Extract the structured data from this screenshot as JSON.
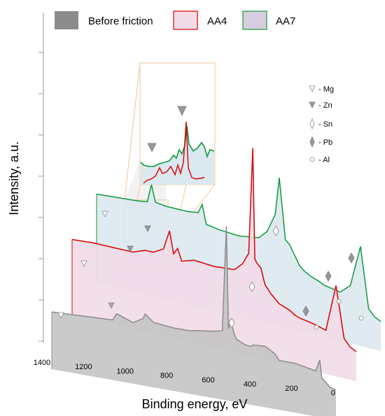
{
  "chart_data": {
    "type": "line",
    "title": "",
    "xlabel": "Binding energy, eV",
    "ylabel": "Intensity, a.u.",
    "x_ticks": [
      "1400",
      "1200",
      "1000",
      "800",
      "600",
      "400",
      "200",
      "0"
    ],
    "xlim": [
      1400,
      0
    ],
    "grid": false,
    "legend_position": "top",
    "series": [
      {
        "name": "Before friction",
        "color": "#8c8c8c",
        "fill": "#c4c4c4",
        "x": [
          1400,
          1300,
          1200,
          1100,
          1080,
          1000,
          950,
          940,
          900,
          800,
          720,
          700,
          600,
          560,
          540,
          530,
          520,
          500,
          490,
          480,
          450,
          420,
          410,
          350,
          300,
          280,
          200,
          150,
          100,
          80,
          70,
          50,
          30,
          0
        ],
        "y": [
          30,
          31,
          32,
          33,
          40,
          34,
          40,
          45,
          38,
          36,
          36,
          37,
          40,
          42,
          150,
          45,
          55,
          40,
          36,
          35,
          32,
          31,
          33,
          34,
          28,
          22,
          22,
          20,
          18,
          30,
          12,
          8,
          4,
          2
        ]
      },
      {
        "name": "AA4",
        "color": "#d90000",
        "fill": "#f2dce8",
        "x": [
          1400,
          1300,
          1200,
          1100,
          1060,
          1040,
          1000,
          950,
          920,
          900,
          880,
          860,
          800,
          700,
          600,
          560,
          530,
          510,
          500,
          490,
          470,
          450,
          420,
          400,
          380,
          330,
          300,
          280,
          200,
          150,
          100,
          60,
          30,
          0
        ],
        "y": [
          60,
          62,
          62,
          62,
          66,
          68,
          68,
          75,
          100,
          72,
          80,
          65,
          70,
          68,
          70,
          80,
          95,
          230,
          90,
          85,
          80,
          60,
          50,
          45,
          40,
          35,
          30,
          28,
          24,
          20,
          80,
          15,
          6,
          2
        ]
      },
      {
        "name": "AA7",
        "color": "#0f9a3c",
        "fill": "#dbe8ef",
        "x": [
          1400,
          1300,
          1200,
          1150,
          1130,
          1110,
          1060,
          1000,
          950,
          900,
          880,
          860,
          800,
          700,
          600,
          560,
          520,
          500,
          470,
          450,
          420,
          400,
          380,
          350,
          300,
          280,
          200,
          150,
          100,
          60,
          30,
          0
        ],
        "y": [
          80,
          82,
          84,
          86,
          110,
          88,
          86,
          86,
          86,
          88,
          100,
          75,
          72,
          70,
          74,
          85,
          110,
          160,
          80,
          75,
          60,
          50,
          45,
          40,
          35,
          32,
          28,
          40,
          95,
          15,
          6,
          2
        ]
      }
    ],
    "annotations": [
      {
        "symbol": "▽",
        "label": "- Mg"
      },
      {
        "symbol": "▼",
        "label": "- Zn"
      },
      {
        "symbol": "◊",
        "label": "- Sn"
      },
      {
        "symbol": "♦",
        "label": "- Pb"
      },
      {
        "symbol": "○",
        "label": "- Al"
      }
    ]
  }
}
